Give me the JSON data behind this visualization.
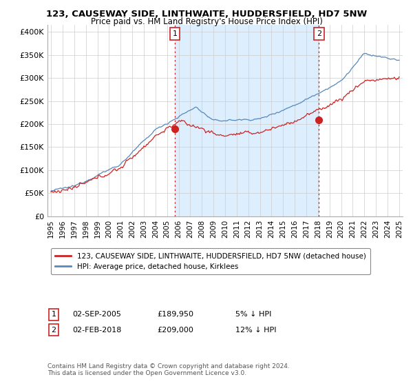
{
  "title": "123, CAUSEWAY SIDE, LINTHWAITE, HUDDERSFIELD, HD7 5NW",
  "subtitle": "Price paid vs. HM Land Registry's House Price Index (HPI)",
  "ylabel_ticks": [
    "£0",
    "£50K",
    "£100K",
    "£150K",
    "£200K",
    "£250K",
    "£300K",
    "£350K",
    "£400K"
  ],
  "ytick_values": [
    0,
    50000,
    100000,
    150000,
    200000,
    250000,
    300000,
    350000,
    400000
  ],
  "ylim": [
    0,
    415000
  ],
  "xlim_start": 1994.7,
  "xlim_end": 2025.3,
  "hpi_color": "#5588bb",
  "hpi_fill_color": "#ddeeff",
  "property_color": "#cc2222",
  "vline_color": "#cc2222",
  "vline_style": ":",
  "marker1_x": 2005.67,
  "marker1_y": 189950,
  "marker2_x": 2018.08,
  "marker2_y": 209000,
  "legend_property": "123, CAUSEWAY SIDE, LINTHWAITE, HUDDERSFIELD, HD7 5NW (detached house)",
  "legend_hpi": "HPI: Average price, detached house, Kirklees",
  "annotation1_label": "1",
  "annotation1_date": "02-SEP-2005",
  "annotation1_price": "£189,950",
  "annotation1_pct": "5% ↓ HPI",
  "annotation2_label": "2",
  "annotation2_date": "02-FEB-2018",
  "annotation2_price": "£209,000",
  "annotation2_pct": "12% ↓ HPI",
  "footer": "Contains HM Land Registry data © Crown copyright and database right 2024.\nThis data is licensed under the Open Government Licence v3.0.",
  "background_color": "#ffffff",
  "grid_color": "#cccccc"
}
